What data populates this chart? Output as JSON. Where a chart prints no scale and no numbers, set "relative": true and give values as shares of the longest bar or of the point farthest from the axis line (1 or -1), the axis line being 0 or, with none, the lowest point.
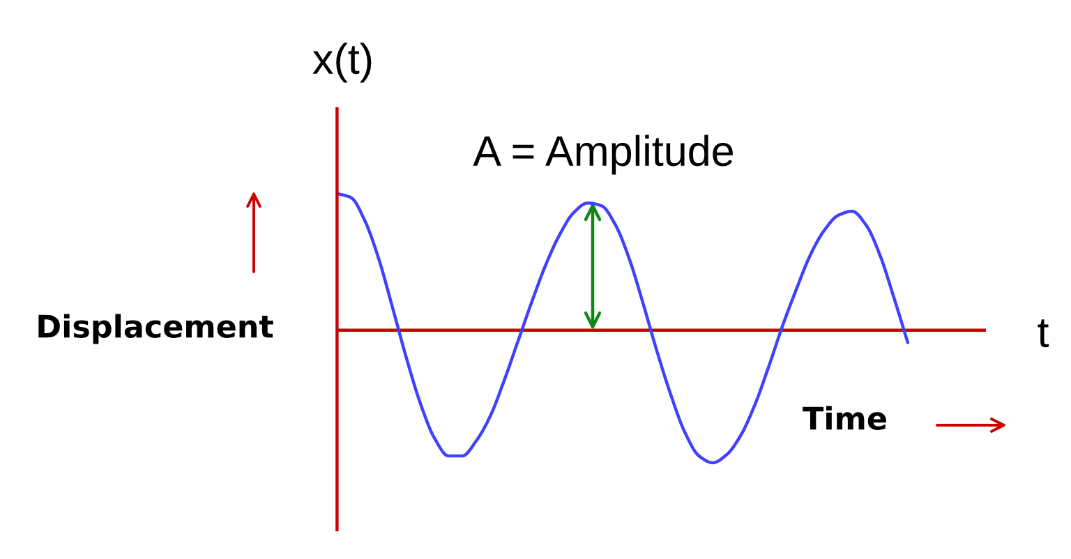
{
  "chart_data": {
    "type": "line",
    "relative": true,
    "xlabel": "t",
    "ylabel": "x(t)",
    "annotations": [
      "A = Amplitude",
      "Displacement",
      "Time"
    ],
    "ref_lines": [
      {
        "axis": "y",
        "value": 0,
        "color": "#cc0000"
      }
    ],
    "categories": [
      null,
      null,
      null,
      null,
      null,
      null,
      null,
      null,
      null,
      null,
      null,
      null,
      null,
      null,
      null,
      null,
      null,
      null,
      null,
      null,
      null,
      null,
      null,
      null,
      null,
      null,
      null,
      null,
      null,
      null,
      null,
      null,
      null,
      null,
      null,
      null,
      null,
      null,
      null,
      null,
      null,
      null
    ],
    "series": [
      {
        "color": "#4040ff",
        "values": [
          1.0,
          0.97,
          0.8,
          0.52,
          0.16,
          -0.21,
          -0.54,
          -0.79,
          -0.92,
          -0.92,
          -0.81,
          -0.63,
          -0.37,
          -0.08,
          0.21,
          0.48,
          0.7,
          0.86,
          0.93,
          0.91,
          0.77,
          0.52,
          0.19,
          -0.16,
          -0.48,
          -0.75,
          -0.92,
          -0.97,
          -0.91,
          -0.77,
          -0.55,
          -0.27,
          0.03,
          0.3,
          0.55,
          0.73,
          0.84,
          0.87,
          0.77,
          0.55,
          0.24,
          -0.09
        ]
      }
    ]
  }
}
